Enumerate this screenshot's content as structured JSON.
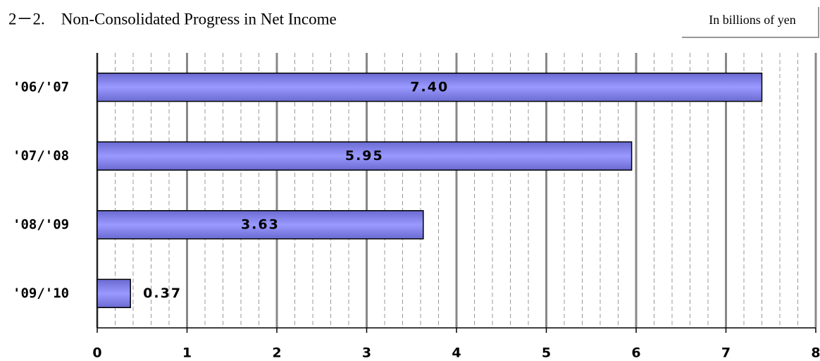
{
  "chart_data": {
    "type": "barh",
    "title": "2－2.　Non-Consolidated Progress in Net Income",
    "unit_label": "In billions of yen",
    "categories": [
      "'06/'07",
      "'07/'08",
      "'08/'09",
      "'09/'10"
    ],
    "values": [
      7.4,
      5.95,
      3.63,
      0.37
    ],
    "value_labels": [
      "7.40",
      "5.95",
      "3.63",
      "0.37"
    ],
    "color": "#9999ff",
    "xlim": [
      0,
      8
    ],
    "xticks": [
      0,
      1,
      2,
      3,
      4,
      5,
      6,
      7,
      8
    ],
    "xminorticks": [
      0.2,
      0.4,
      0.6,
      0.8,
      1.2,
      1.4,
      1.6,
      1.8,
      2.2,
      2.4,
      2.6,
      2.8,
      3.2,
      3.4,
      3.6,
      3.8,
      4.2,
      4.4,
      4.6,
      4.8,
      5.2,
      5.4,
      5.6,
      5.8,
      6.2,
      6.4,
      6.6,
      6.8,
      7.2,
      7.4,
      7.6,
      7.8
    ],
    "grid": true
  }
}
